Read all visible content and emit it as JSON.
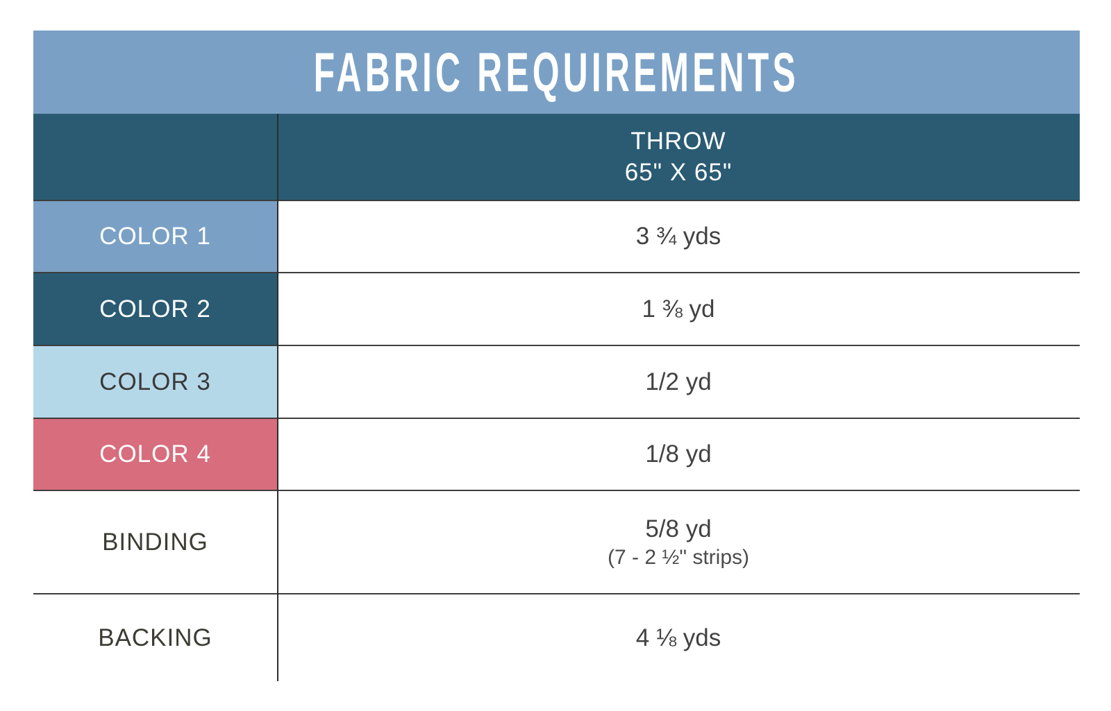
{
  "title": "FABRIC REQUIREMENTS",
  "size_header": {
    "line1": "THROW",
    "line2": "65\" X 65\""
  },
  "colors": {
    "title_bar_bg": "#7aa0c5",
    "title_text": "#ffffff",
    "size_header_bg": "#2a5b73",
    "size_header_text": "#ffffff",
    "divider_line": "#3d3d3d",
    "value_text": "#424242"
  },
  "rows": [
    {
      "label": "COLOR 1",
      "value": "3 ¾ yds",
      "swatch_bg": "#7aa0c5",
      "label_text_color": "#ffffff"
    },
    {
      "label": "COLOR 2",
      "value": "1 ⅜ yd",
      "swatch_bg": "#2a5b73",
      "label_text_color": "#ffffff"
    },
    {
      "label": "COLOR 3",
      "value": "1/2 yd",
      "swatch_bg": "#b5d8e9",
      "label_text_color": "#3a3a3a"
    },
    {
      "label": "COLOR 4",
      "value": "1/8 yd",
      "swatch_bg": "#d76d7d",
      "label_text_color": "#ffffff"
    },
    {
      "label": "BINDING",
      "value": "5/8 yd",
      "value_line2": "(7 - 2 ½\" strips)",
      "swatch_bg": "",
      "label_text_color": "#3c3c34"
    },
    {
      "label": "BACKING",
      "value": "4 ⅛ yds",
      "swatch_bg": "",
      "label_text_color": "#3c3c34"
    }
  ]
}
